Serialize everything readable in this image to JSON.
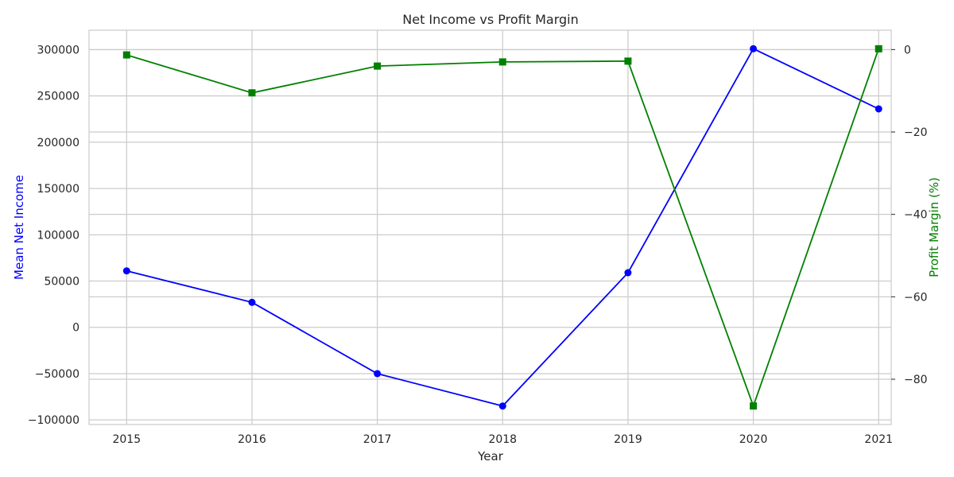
{
  "chart_data": {
    "type": "line",
    "title": "Net Income vs Profit Margin",
    "xlabel": "Year",
    "categories": [
      "2015",
      "2016",
      "2017",
      "2018",
      "2019",
      "2020",
      "2021"
    ],
    "x": [
      2015,
      2016,
      2017,
      2018,
      2019,
      2020,
      2021
    ],
    "xlim": [
      2014.7,
      2021.1
    ],
    "grid": true,
    "left_axis": {
      "label": "Mean Net Income",
      "color": "#0000ff",
      "ylim": [
        -105000,
        321000
      ],
      "ticks": [
        300000,
        250000,
        200000,
        150000,
        100000,
        50000,
        0,
        -50000,
        -100000
      ],
      "tick_labels": [
        "300000",
        "250000",
        "200000",
        "150000",
        "100000",
        "50000",
        "0",
        "−50000",
        "−100000"
      ]
    },
    "right_axis": {
      "label": "Profit Margin (%)",
      "color": "#008000",
      "ylim": [
        -91,
        4.7
      ],
      "ticks": [
        0,
        -20,
        -40,
        -60,
        -80
      ],
      "tick_labels": [
        "0",
        "−20",
        "−40",
        "−60",
        "−80"
      ]
    },
    "series": [
      {
        "axis": "left",
        "marker": "circle",
        "color": "#0000ff",
        "values": [
          61000,
          27000,
          -50000,
          -85000,
          59000,
          301000,
          236000
        ]
      },
      {
        "axis": "right",
        "marker": "square",
        "color": "#008000",
        "values": [
          -1.3,
          -10.5,
          -4.0,
          -3.0,
          -2.8,
          -86.5,
          0.2
        ]
      }
    ]
  }
}
